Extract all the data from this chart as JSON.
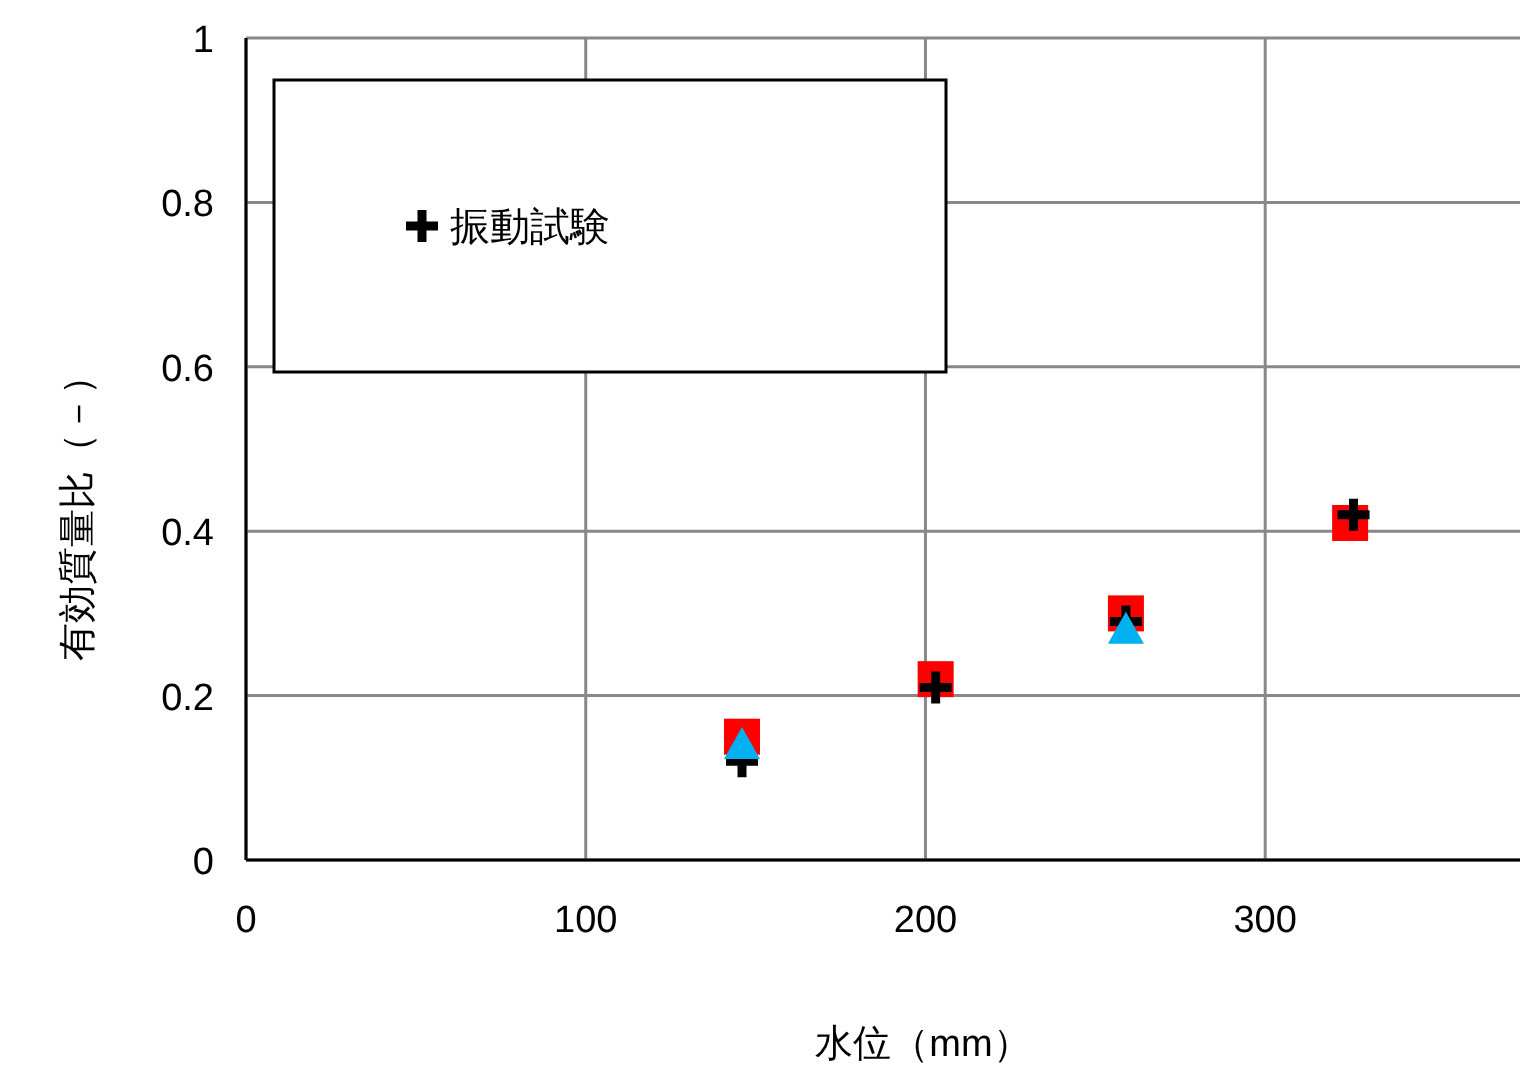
{
  "chart_data": {
    "type": "scatter",
    "xlabel": "水位（mm）",
    "ylabel": "有効質量比（－）",
    "xlim": [
      0,
      375
    ],
    "ylim": [
      0,
      1
    ],
    "xticks": [
      0,
      100,
      200,
      300
    ],
    "yticks": [
      0,
      {
        "value": 0.2,
        "label": "0.2"
      },
      {
        "value": 0.4,
        "label": "0.4"
      },
      {
        "value": 0.6,
        "label": "0.6"
      },
      {
        "value": 0.8,
        "label": "0.8"
      },
      1
    ],
    "grid": true,
    "legend": "top left",
    "series": [
      {
        "color": "#ff0000",
        "marker": "square",
        "x": [
          146,
          203,
          259,
          325
        ],
        "values": [
          0.15,
          0.22,
          0.3,
          0.41
        ]
      },
      {
        "name": "振動試験",
        "color": "#000000",
        "marker": "cross",
        "x": [
          146,
          203,
          259,
          326
        ],
        "values": [
          0.12,
          0.21,
          0.29,
          0.42
        ]
      },
      {
        "color": "#00b0f0",
        "marker": "triangle",
        "x": [
          146,
          259
        ],
        "values": [
          0.14,
          0.28
        ]
      }
    ]
  }
}
